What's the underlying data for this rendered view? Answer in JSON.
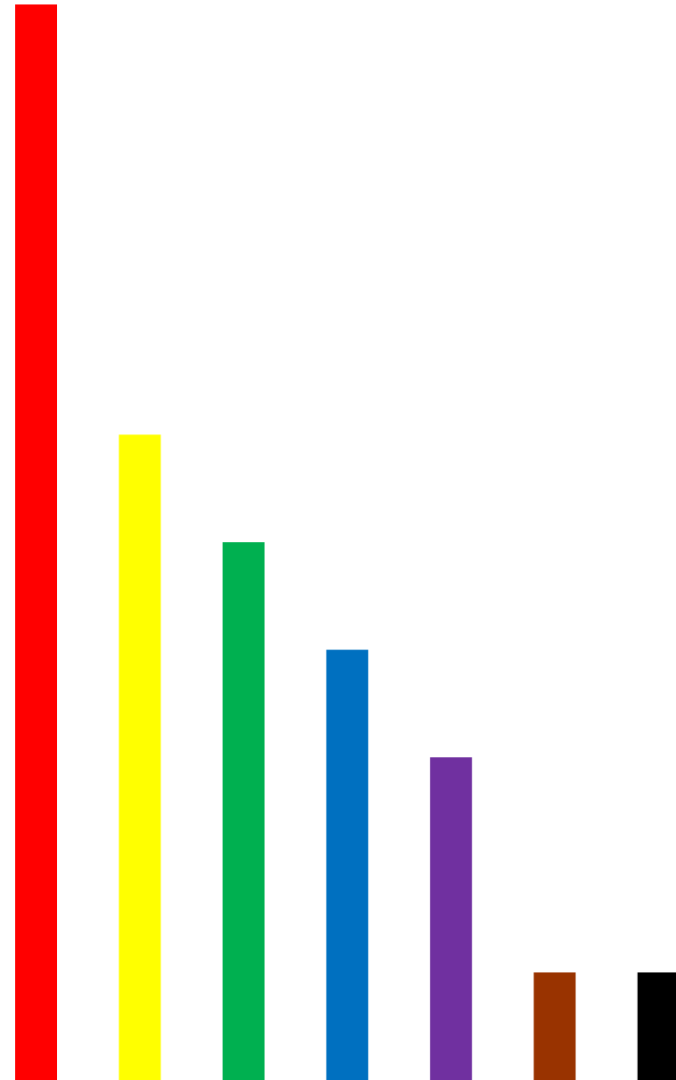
{
  "chart_data": {
    "type": "bar",
    "values": [
      10,
      6,
      5,
      4,
      3,
      1,
      1
    ],
    "colors": [
      "#ff0000",
      "#ffff00",
      "#00b050",
      "#0070c0",
      "#7030a0",
      "#993300",
      "#000000"
    ],
    "ylim": [
      0,
      10
    ]
  }
}
